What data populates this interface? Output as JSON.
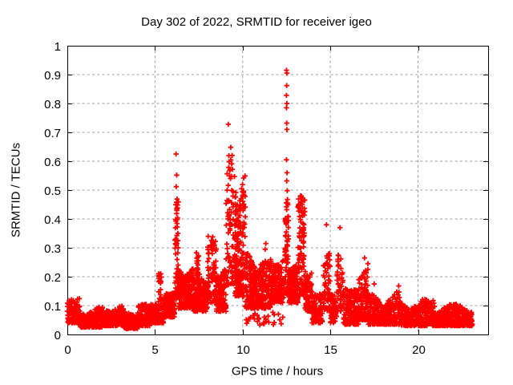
{
  "chart_data": {
    "type": "scatter",
    "title": "Day 302 of 2022, SRMTID for receiver igeo",
    "xlabel": "GPS time / hours",
    "ylabel": "SRMTID / TECUs",
    "xlim": [
      0,
      24
    ],
    "ylim": [
      0,
      1
    ],
    "xticks": [
      {
        "v": 0,
        "label": "0"
      },
      {
        "v": 5,
        "label": "5"
      },
      {
        "v": 10,
        "label": "10"
      },
      {
        "v": 15,
        "label": "15"
      },
      {
        "v": 20,
        "label": "20"
      }
    ],
    "yticks": [
      {
        "v": 0,
        "label": "0"
      },
      {
        "v": 0.1,
        "label": "0.1"
      },
      {
        "v": 0.2,
        "label": "0.2"
      },
      {
        "v": 0.3,
        "label": "0.3"
      },
      {
        "v": 0.4,
        "label": "0.4"
      },
      {
        "v": 0.5,
        "label": "0.5"
      },
      {
        "v": 0.6,
        "label": "0.6"
      },
      {
        "v": 0.7,
        "label": "0.7"
      },
      {
        "v": 0.8,
        "label": "0.8"
      },
      {
        "v": 0.9,
        "label": "0.9"
      },
      {
        "v": 1,
        "label": "1"
      }
    ],
    "grid": true,
    "legend": "none",
    "marker": {
      "shape": "plus",
      "color": "#ff0000",
      "size": 6.4,
      "stroke_width": 1.8
    },
    "grid_color": "#9c9c9c",
    "border_color": "#000000",
    "seed": 302,
    "density_bands": [
      {
        "t0": 0.0,
        "t1": 0.7,
        "y0": 0.04,
        "y1": 0.125,
        "n": 120,
        "bias": 1.6
      },
      {
        "t0": 0.7,
        "t1": 2.0,
        "y0": 0.025,
        "y1": 0.095,
        "n": 230,
        "bias": 1.5
      },
      {
        "t0": 2.0,
        "t1": 3.2,
        "y0": 0.03,
        "y1": 0.11,
        "n": 210,
        "bias": 1.5
      },
      {
        "t0": 3.2,
        "t1": 4.0,
        "y0": 0.02,
        "y1": 0.09,
        "n": 140,
        "bias": 1.5
      },
      {
        "t0": 4.0,
        "t1": 4.7,
        "y0": 0.03,
        "y1": 0.105,
        "n": 120,
        "bias": 1.5
      },
      {
        "t0": 4.7,
        "t1": 5.5,
        "y0": 0.04,
        "y1": 0.14,
        "n": 150,
        "bias": 1.5
      },
      {
        "t0": 5.2,
        "t1": 5.38,
        "y0": 0.12,
        "y1": 0.21,
        "n": 18,
        "bias": 1.1
      },
      {
        "t0": 5.5,
        "t1": 6.12,
        "y0": 0.06,
        "y1": 0.185,
        "n": 140,
        "bias": 1.4
      },
      {
        "t0": 6.13,
        "t1": 6.33,
        "y0": 0.12,
        "y1": 0.47,
        "n": 55,
        "bias": 1.3
      },
      {
        "t0": 6.33,
        "t1": 7.2,
        "y0": 0.09,
        "y1": 0.27,
        "n": 210,
        "bias": 1.5
      },
      {
        "t0": 7.2,
        "t1": 8.0,
        "y0": 0.08,
        "y1": 0.22,
        "n": 170,
        "bias": 1.5
      },
      {
        "t0": 7.35,
        "t1": 7.55,
        "y0": 0.15,
        "y1": 0.34,
        "n": 22,
        "bias": 1.2
      },
      {
        "t0": 8.0,
        "t1": 8.5,
        "y0": 0.11,
        "y1": 0.35,
        "n": 90,
        "bias": 1.4
      },
      {
        "t0": 8.5,
        "t1": 9.05,
        "y0": 0.08,
        "y1": 0.27,
        "n": 130,
        "bias": 1.5
      },
      {
        "t0": 9.05,
        "t1": 9.65,
        "y0": 0.17,
        "y1": 0.63,
        "n": 100,
        "bias": 1.4
      },
      {
        "t0": 9.55,
        "t1": 10.15,
        "y0": 0.13,
        "y1": 0.6,
        "n": 180,
        "bias": 1.4
      },
      {
        "t0": 10.15,
        "t1": 10.8,
        "y0": 0.09,
        "y1": 0.29,
        "n": 160,
        "bias": 1.5
      },
      {
        "t0": 10.8,
        "t1": 11.6,
        "y0": 0.09,
        "y1": 0.26,
        "n": 170,
        "bias": 1.5
      },
      {
        "t0": 11.6,
        "t1": 12.38,
        "y0": 0.11,
        "y1": 0.31,
        "n": 170,
        "bias": 1.4
      },
      {
        "t0": 12.4,
        "t1": 12.62,
        "y0": 0.14,
        "y1": 0.47,
        "n": 60,
        "bias": 1.2
      },
      {
        "t0": 12.62,
        "t1": 13.15,
        "y0": 0.11,
        "y1": 0.3,
        "n": 140,
        "bias": 1.4
      },
      {
        "t0": 13.15,
        "t1": 13.55,
        "y0": 0.13,
        "y1": 0.48,
        "n": 95,
        "bias": 1.3
      },
      {
        "t0": 13.55,
        "t1": 13.95,
        "y0": 0.08,
        "y1": 0.28,
        "n": 90,
        "bias": 1.4
      },
      {
        "t0": 13.95,
        "t1": 14.55,
        "y0": 0.04,
        "y1": 0.14,
        "n": 90,
        "bias": 1.4
      },
      {
        "t0": 14.6,
        "t1": 15.0,
        "y0": 0.08,
        "y1": 0.38,
        "n": 60,
        "bias": 1.4
      },
      {
        "t0": 15.0,
        "t1": 15.35,
        "y0": 0.04,
        "y1": 0.14,
        "n": 60,
        "bias": 1.4
      },
      {
        "t0": 15.35,
        "t1": 15.75,
        "y0": 0.08,
        "y1": 0.37,
        "n": 55,
        "bias": 1.4
      },
      {
        "t0": 15.75,
        "t1": 16.6,
        "y0": 0.035,
        "y1": 0.16,
        "n": 150,
        "bias": 1.5
      },
      {
        "t0": 16.6,
        "t1": 17.15,
        "y0": 0.05,
        "y1": 0.27,
        "n": 110,
        "bias": 1.7
      },
      {
        "t0": 17.15,
        "t1": 19.0,
        "y0": 0.035,
        "y1": 0.15,
        "n": 280,
        "bias": 1.6
      },
      {
        "t0": 19.0,
        "t1": 21.0,
        "y0": 0.03,
        "y1": 0.125,
        "n": 340,
        "bias": 1.6
      },
      {
        "t0": 21.0,
        "t1": 23.1,
        "y0": 0.03,
        "y1": 0.105,
        "n": 390,
        "bias": 1.5
      },
      {
        "t0": 10.2,
        "t1": 12.3,
        "y0": 0.03,
        "y1": 0.085,
        "n": 30,
        "bias": 1.2
      }
    ],
    "outlier_points": [
      [
        12.5,
        0.915
      ],
      [
        12.52,
        0.905
      ],
      [
        12.51,
        0.862
      ],
      [
        12.5,
        0.828
      ],
      [
        12.52,
        0.8
      ],
      [
        12.5,
        0.785
      ],
      [
        12.51,
        0.732
      ],
      [
        12.52,
        0.71
      ],
      [
        12.5,
        0.605
      ],
      [
        12.53,
        0.56
      ],
      [
        12.51,
        0.532
      ],
      [
        12.54,
        0.498
      ],
      [
        9.18,
        0.728
      ],
      [
        6.2,
        0.625
      ],
      [
        6.24,
        0.552
      ],
      [
        6.21,
        0.512
      ],
      [
        9.32,
        0.648
      ],
      [
        9.4,
        0.62
      ],
      [
        11.32,
        0.315
      ],
      [
        11.28,
        0.295
      ],
      [
        16.95,
        0.265
      ],
      [
        17.5,
        0.175
      ],
      [
        18.9,
        0.168
      ],
      [
        5.3,
        0.21
      ],
      [
        15.55,
        0.37
      ],
      [
        14.78,
        0.38
      ],
      [
        13.3,
        0.48
      ]
    ]
  }
}
